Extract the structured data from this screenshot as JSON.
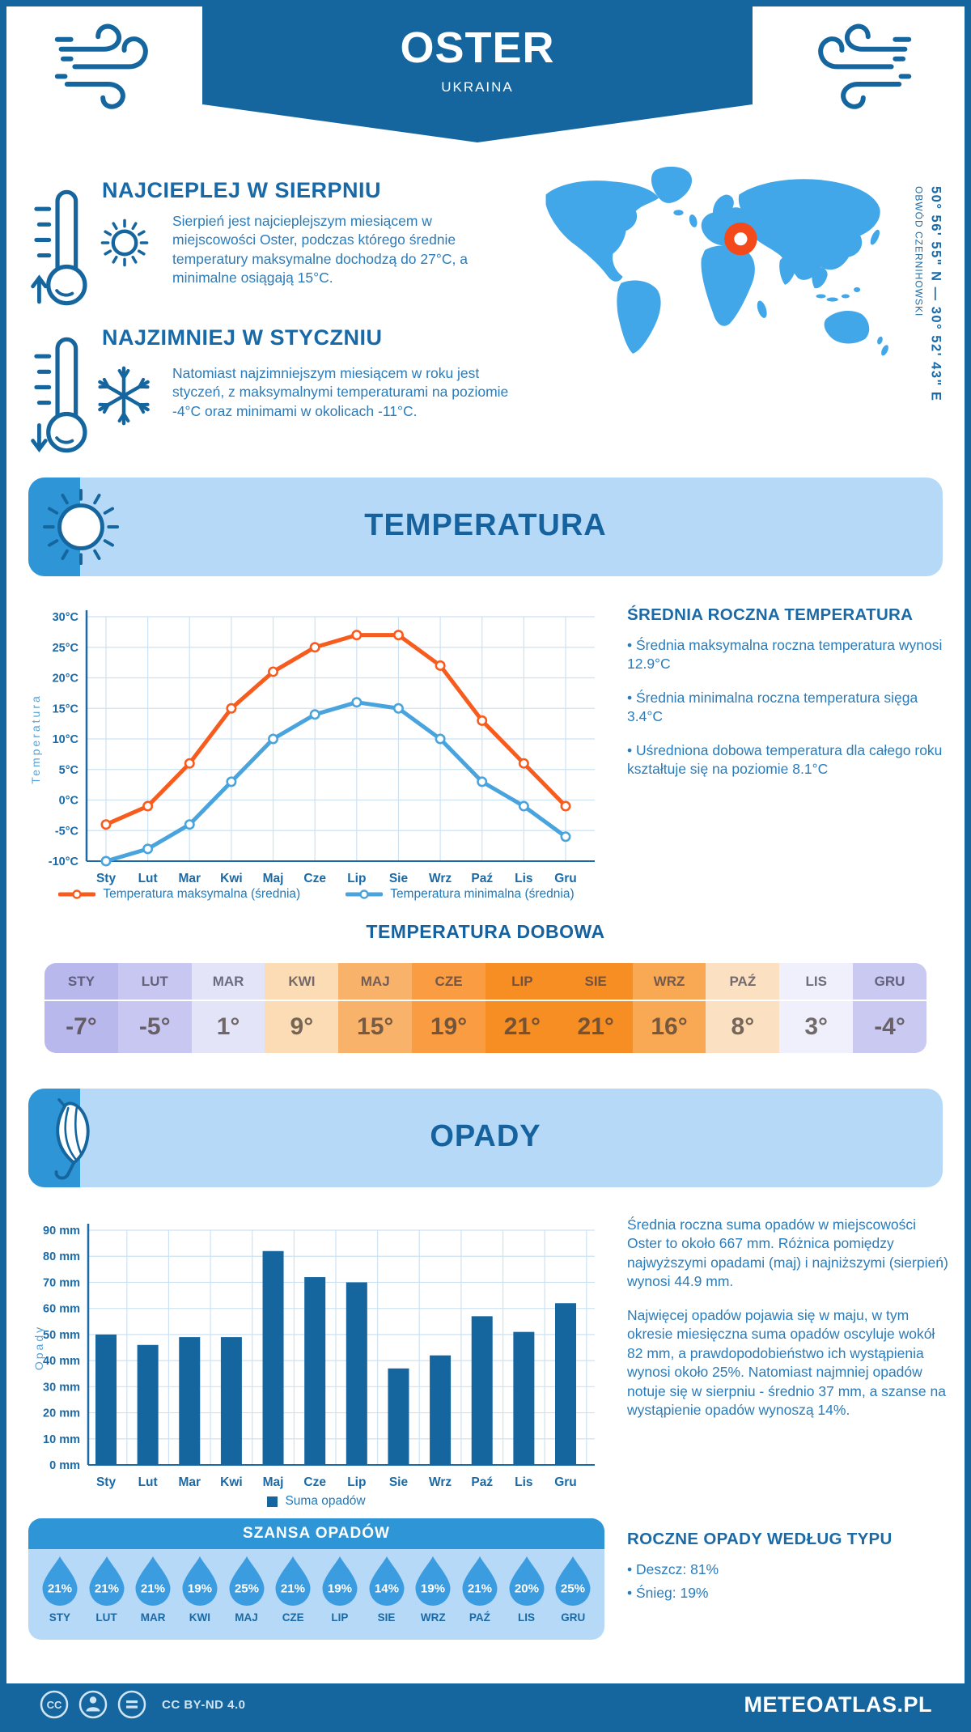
{
  "header": {
    "title": "OSTER",
    "country": "UKRAINA"
  },
  "coords": {
    "line1": "50° 56' 55\" N — 30° 52' 43\" E",
    "line2": "OBWÓD CZERNIHOWSKI"
  },
  "warmest": {
    "heading": "NAJCIEPLEJ W SIERPNIU",
    "text": "Sierpień jest najcieplejszym miesiącem w miejscowości Oster, podczas którego średnie temperatury maksymalne dochodzą do 27°C, a minimalne osiągają 15°C."
  },
  "coldest": {
    "heading": "NAJZIMNIEJ W STYCZNIU",
    "text": "Natomiast najzimniejszym miesiącem w roku jest styczeń, z maksymalnymi temperaturami na poziomie -4°C oraz minimami w okolicach -11°C."
  },
  "temperature_section": {
    "title": "TEMPERATURA",
    "annual": {
      "heading": "ŚREDNIA ROCZNA TEMPERATURA",
      "bullets": [
        "• Średnia maksymalna roczna temperatura wynosi 12.9°C",
        "• Średnia minimalna roczna temperatura sięga 3.4°C",
        "• Uśredniona dobowa temperatura dla całego roku kształtuje się na poziomie 8.1°C"
      ]
    }
  },
  "daily_temp": {
    "title": "TEMPERATURA DOBOWA",
    "months": [
      "STY",
      "LUT",
      "MAR",
      "KWI",
      "MAJ",
      "CZE",
      "LIP",
      "SIE",
      "WRZ",
      "PAŹ",
      "LIS",
      "GRU"
    ],
    "values": [
      "-7°",
      "-5°",
      "1°",
      "9°",
      "15°",
      "19°",
      "21°",
      "21°",
      "16°",
      "8°",
      "3°",
      "-4°"
    ],
    "colors": [
      "#b9b8ed",
      "#c7c7f1",
      "#e4e4f9",
      "#fbdcb4",
      "#f9b269",
      "#f99c42",
      "#f78e24",
      "#f78e24",
      "#f9a953",
      "#fbe0c2",
      "#eff0fb",
      "#c9c9f2"
    ]
  },
  "precip_section": {
    "title": "OPADY",
    "paragraphs": [
      "Średnia roczna suma opadów w miejscowości Oster to około 667 mm. Różnica pomiędzy najwyższymi opadami (maj) i najniższymi (sierpień) wynosi 44.9 mm.",
      "Najwięcej opadów pojawia się w maju, w tym okresie miesięczna suma opadów oscyluje wokół 82 mm, a prawdopodobieństwo ich wystąpienia wynosi około 25%. Natomiast najmniej opadów notuje się w sierpniu - średnio 37 mm, a szanse na wystąpienie opadów wynoszą 14%."
    ],
    "by_type": {
      "heading": "ROCZNE OPADY WEDŁUG TYPU",
      "bullets": [
        "• Deszcz: 81%",
        "• Śnieg: 19%"
      ]
    }
  },
  "rain_chance": {
    "title": "SZANSA OPADÓW",
    "months": [
      "STY",
      "LUT",
      "MAR",
      "KWI",
      "MAJ",
      "CZE",
      "LIP",
      "SIE",
      "WRZ",
      "PAŹ",
      "LIS",
      "GRU"
    ],
    "values": [
      "21%",
      "21%",
      "21%",
      "19%",
      "25%",
      "21%",
      "19%",
      "14%",
      "19%",
      "21%",
      "20%",
      "25%"
    ],
    "drop_color": "#3b9ce0"
  },
  "footer": {
    "license": "CC BY-ND 4.0",
    "site": "METEOATLAS.PL"
  },
  "colors": {
    "primary_blue": "#15669f",
    "medium_blue": "#2e95d6",
    "panel_blue": "#b5d9f6",
    "map_land": "#41a7e8",
    "marker_orange": "#f4491a",
    "max_line": "#f75c1e",
    "min_line": "#49a4de",
    "grid": "#cde2f3"
  },
  "chart_data": [
    {
      "type": "line",
      "title": "TEMPERATURA",
      "x": [
        "Sty",
        "Lut",
        "Mar",
        "Kwi",
        "Maj",
        "Cze",
        "Lip",
        "Sie",
        "Wrz",
        "Paź",
        "Lis",
        "Gru"
      ],
      "ylabel": "Temperatura",
      "ylim": [
        -10,
        30
      ],
      "ytick_step": 5,
      "ytick_suffix": "°C",
      "grid": true,
      "legend_position": "bottom",
      "series": [
        {
          "name": "Temperatura maksymalna (średnia)",
          "color": "#f75c1e",
          "values": [
            -4,
            -1,
            6,
            15,
            21,
            25,
            27,
            27,
            22,
            13,
            6,
            -1
          ]
        },
        {
          "name": "Temperatura minimalna (średnia)",
          "color": "#49a4de",
          "values": [
            -10,
            -8,
            -4,
            3,
            10,
            14,
            16,
            15,
            10,
            3,
            -1,
            -6
          ]
        }
      ]
    },
    {
      "type": "bar",
      "title": "OPADY",
      "x": [
        "Sty",
        "Lut",
        "Mar",
        "Kwi",
        "Maj",
        "Cze",
        "Lip",
        "Sie",
        "Wrz",
        "Paź",
        "Lis",
        "Gru"
      ],
      "ylabel": "Opady",
      "ylim": [
        0,
        90
      ],
      "ytick_step": 10,
      "ytick_suffix": " mm",
      "grid": true,
      "legend_position": "bottom",
      "series": [
        {
          "name": "Suma opadów",
          "color": "#15669f",
          "values": [
            50,
            46,
            49,
            49,
            82,
            72,
            70,
            37,
            42,
            57,
            51,
            62
          ]
        }
      ]
    }
  ]
}
